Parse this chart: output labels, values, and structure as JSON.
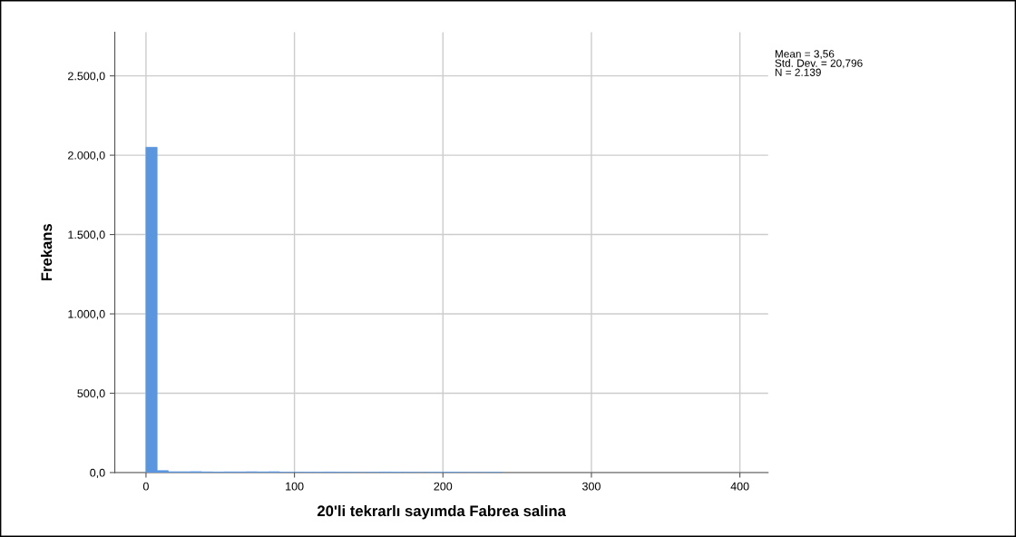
{
  "chart_data": {
    "type": "histogram",
    "xlabel": "20'li tekrarlı sayımda Fabrea salina",
    "ylabel": "Frekans",
    "bins": [
      0,
      7.5,
      15,
      22.5,
      30,
      37.5,
      45,
      52.5,
      60,
      67.5,
      75,
      82.5,
      90,
      97.5,
      105,
      112.5,
      120,
      127.5,
      135,
      142.5,
      150,
      157.5,
      165,
      172.5,
      180,
      187.5,
      195,
      202.5,
      210,
      217.5,
      225,
      232.5,
      240
    ],
    "values": [
      2050,
      12,
      5,
      5,
      6,
      4,
      3,
      4,
      4,
      5,
      4,
      5,
      2,
      1,
      2,
      2,
      3,
      2,
      1,
      0,
      1,
      3,
      2,
      1,
      0,
      1,
      1,
      2,
      0,
      0,
      0,
      1
    ],
    "color": "#5a96e0",
    "xlim": [
      -21,
      419
    ],
    "xticks": [
      0,
      100,
      200,
      300,
      400
    ],
    "ylim": [
      0,
      2775
    ],
    "yticks": [
      {
        "value": 0,
        "label": "0,0"
      },
      {
        "value": 500,
        "label": "500,0"
      },
      {
        "value": 1000,
        "label": "1.000,0"
      },
      {
        "value": 1500,
        "label": "1.500,0"
      },
      {
        "value": 2000,
        "label": "2.000,0"
      },
      {
        "value": 2500,
        "label": "2.500,0"
      }
    ],
    "grid": true,
    "annotations": [
      "Mean = 3,56\nStd. Dev. = 20,796\nN = 2.139"
    ]
  }
}
